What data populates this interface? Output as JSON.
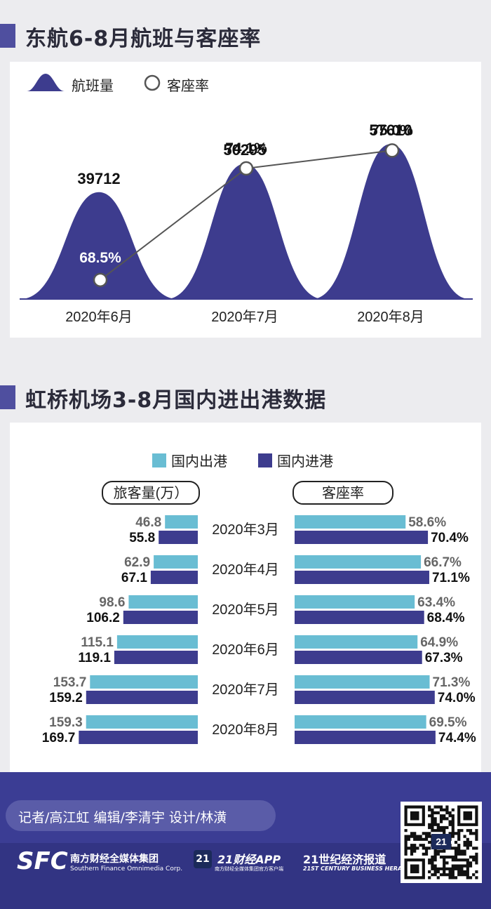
{
  "section1": {
    "title": "东航6-8月航班与客座率"
  },
  "section2": {
    "title": "虹桥机场3-8月国内进出港数据"
  },
  "chart_data": [
    {
      "type": "area",
      "title": "东航6-8月航班与客座率",
      "legend": [
        "航班量",
        "客座率"
      ],
      "categories": [
        "2020年6月",
        "2020年7月",
        "2020年8月"
      ],
      "series": [
        {
          "name": "航班量",
          "values": [
            39712,
            50295,
            57610
          ],
          "labels": [
            "39712",
            "50295",
            "57610"
          ],
          "color": "#3d3c8e"
        },
        {
          "name": "客座率",
          "values": [
            68.5,
            74.1,
            75.0
          ],
          "labels": [
            "68.5%",
            "74.1%",
            "75.0%"
          ],
          "color": "#555555"
        }
      ]
    },
    {
      "type": "bar",
      "title": "虹桥机场3-8月国内进出港数据",
      "legend": [
        "国内出港",
        "国内进港"
      ],
      "categories": [
        "2020年3月",
        "2020年4月",
        "2020年5月",
        "2020年6月",
        "2020年7月",
        "2020年8月"
      ],
      "panels": [
        {
          "label": "旅客量(万）",
          "series": [
            {
              "name": "国内出港",
              "values": [
                46.8,
                62.9,
                98.6,
                115.1,
                153.7,
                159.3
              ],
              "labels": [
                "46.8",
                "62.9",
                "98.6",
                "115.1",
                "153.7",
                "159.3"
              ],
              "color": "#69bdd3"
            },
            {
              "name": "国内进港",
              "values": [
                55.8,
                67.1,
                106.2,
                119.1,
                159.2,
                169.7
              ],
              "labels": [
                "55.8",
                "67.1",
                "106.2",
                "119.1",
                "159.2",
                "169.7"
              ],
              "color": "#3d3c8e"
            }
          ]
        },
        {
          "label": "客座率",
          "series": [
            {
              "name": "国内出港",
              "values": [
                58.6,
                66.7,
                63.4,
                64.9,
                71.3,
                69.5
              ],
              "labels": [
                "58.6%",
                "66.7%",
                "63.4%",
                "64.9%",
                "71.3%",
                "69.5%"
              ],
              "color": "#69bdd3"
            },
            {
              "name": "国内进港",
              "values": [
                70.4,
                71.1,
                68.4,
                67.3,
                74.0,
                74.4
              ],
              "labels": [
                "70.4%",
                "71.1%",
                "68.4%",
                "67.3%",
                "74.0%",
                "74.4%"
              ],
              "color": "#3d3c8e"
            }
          ]
        }
      ]
    }
  ],
  "footer": {
    "credits": "记者/高江虹  编辑/李清宇  设计/林潢",
    "logos": {
      "sfc": "SFC",
      "sfc_cn": "南方财经全媒体集团",
      "sfc_en": "Southern Finance Omnimedia Corp.",
      "app_badge": "21",
      "app_name": "21财经APP",
      "app_sub": "南方财经全媒体集团官方客户端",
      "herald_cn": "21世纪经济报道",
      "herald_en": "21ST CENTURY BUSINESS HERALD",
      "qr_badge": "21"
    }
  },
  "watermark": "21世纪经济报道"
}
